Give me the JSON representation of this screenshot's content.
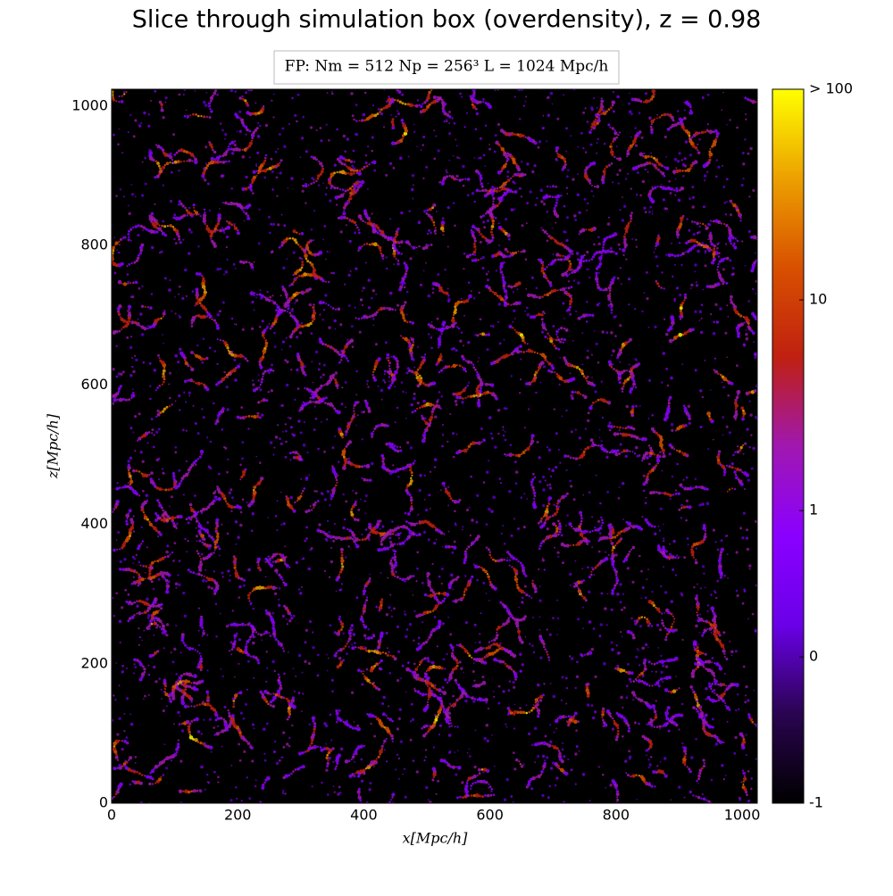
{
  "chart_data": {
    "type": "heatmap",
    "title": "Slice through simulation box (overdensity), z = 0.98",
    "legend": "FP:  Nm = 512  Np = 256³  L = 1024 Mpc/h",
    "xlabel": "x[Mpc/h]",
    "ylabel": "z[Mpc/h]",
    "xlim": [
      0,
      1024
    ],
    "ylim": [
      0,
      1024
    ],
    "xticks": [
      0,
      200,
      400,
      600,
      800,
      1000
    ],
    "yticks": [
      0,
      200,
      400,
      600,
      800,
      1000
    ],
    "clim": [
      -1,
      100
    ],
    "cscale": "symlog",
    "cticks": [
      -1,
      0,
      1,
      10,
      {
        "value": 100,
        "label": "> 100"
      }
    ],
    "colormap": [
      "#000000",
      "#2a0450",
      "#6a00e8",
      "#8a00ff",
      "#a018b0",
      "#c02010",
      "#d85000",
      "#eca000",
      "#ffff00"
    ]
  }
}
